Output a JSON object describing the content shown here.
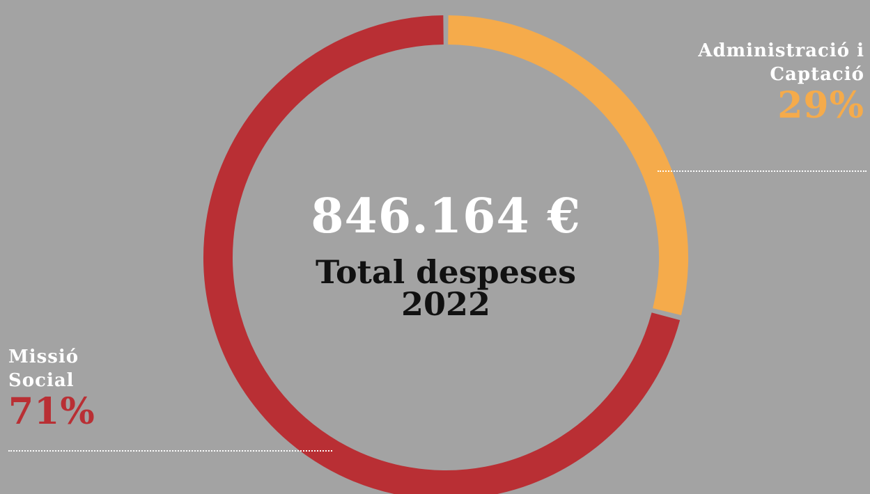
{
  "chart_data": {
    "type": "pie",
    "categories": [
      "Administració i Captació",
      "Missió Social"
    ],
    "values": [
      29,
      71
    ],
    "labels": [
      "29%",
      "71%"
    ],
    "center_value": "846.164 €",
    "center_label_line1": "Total despeses",
    "center_label_line2": "2022",
    "colors": [
      "#f5ab4b",
      "#b92f34"
    ],
    "legend_placement": "outside-labels"
  },
  "labels": {
    "right_line1": "Administració i",
    "right_line2": "Captació",
    "left_line1": "Missió",
    "left_line2": "Social"
  }
}
